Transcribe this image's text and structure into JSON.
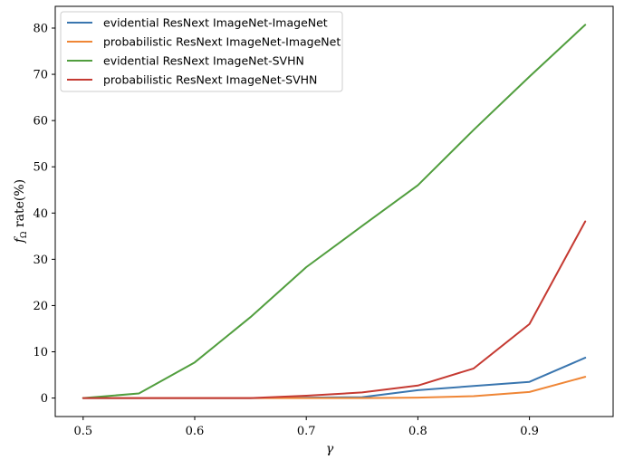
{
  "chart_data": {
    "type": "line",
    "x": [
      0.5,
      0.55,
      0.6,
      0.65,
      0.7,
      0.75,
      0.8,
      0.85,
      0.9,
      0.95
    ],
    "series": [
      {
        "name": "evidential ResNext ImageNet-ImageNet",
        "color": "#3a76af",
        "values": [
          0,
          0,
          0,
          0,
          0.1,
          0.2,
          1.7,
          2.6,
          3.5,
          8.7
        ]
      },
      {
        "name": "probabilistic ResNext ImageNet-ImageNet",
        "color": "#ef8636",
        "values": [
          0,
          0,
          0,
          0,
          0,
          0,
          0.1,
          0.4,
          1.3,
          4.6
        ]
      },
      {
        "name": "evidential ResNext ImageNet-SVHN",
        "color": "#519e3e",
        "values": [
          0,
          1.0,
          7.7,
          17.5,
          28.3,
          37.2,
          46.0,
          58.0,
          69.5,
          80.7
        ]
      },
      {
        "name": "probabilistic ResNext ImageNet-SVHN",
        "color": "#c53a32",
        "values": [
          0,
          0,
          0,
          0,
          0.5,
          1.2,
          2.7,
          6.4,
          16.0,
          38.2
        ]
      }
    ],
    "xlabel": "γ",
    "ylabel_main": "f",
    "ylabel_sub": "Ω",
    "ylabel_rest": " rate(%)",
    "xlim": [
      0.475,
      0.975
    ],
    "ylim": [
      -4.0,
      84.7
    ],
    "xticks": [
      0.5,
      0.6,
      0.7,
      0.8,
      0.9
    ],
    "xtick_labels": [
      "0.5",
      "0.6",
      "0.7",
      "0.8",
      "0.9"
    ],
    "yticks": [
      0,
      10,
      20,
      30,
      40,
      50,
      60,
      70,
      80
    ],
    "ytick_labels": [
      "0",
      "10",
      "20",
      "30",
      "40",
      "50",
      "60",
      "70",
      "80"
    ],
    "legend_position": "top-left",
    "grid": false
  }
}
